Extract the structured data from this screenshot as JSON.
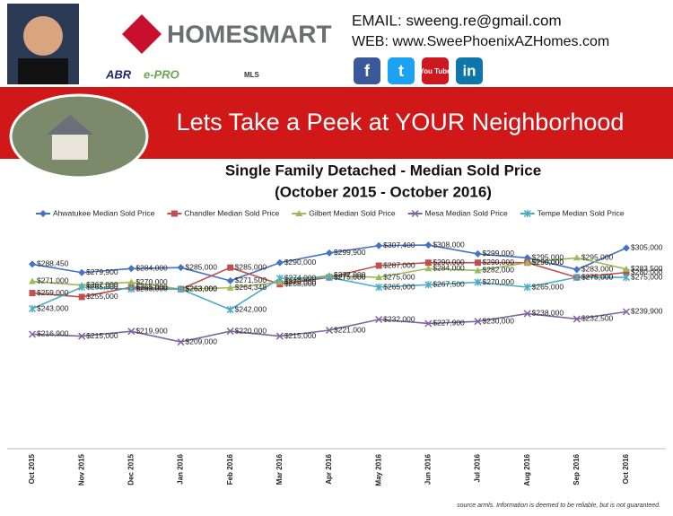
{
  "header": {
    "logo": "HOMESMART",
    "email": "EMAIL: sweeng.re@gmail.com",
    "web": "WEB: www.SweePhoenixAZHomes.com",
    "badges": [
      "ABR",
      "e-PRO",
      "MLS"
    ],
    "social": [
      "f",
      "t",
      "You Tube",
      "in"
    ],
    "banner": "Lets Take a Peek at YOUR Neighborhood"
  },
  "chart_data": {
    "type": "line",
    "title": "Single Family Detached - Median Sold Price",
    "subtitle": "(October 2015 - October 2016)",
    "categories": [
      "Oct 2015",
      "Nov 2015",
      "Dec 2015",
      "Jan 2016",
      "Feb 2016",
      "Mar 2016",
      "Apr 2016",
      "May 2016",
      "Jun 2016",
      "Jul 2016",
      "Aug 2016",
      "Sep 2016",
      "Oct 2016"
    ],
    "ylim": [
      100000,
      320000
    ],
    "series": [
      {
        "name": "Ahwatukee Median Sold Price",
        "color": "#4472c4",
        "marker": "diamond",
        "values": [
          288450,
          279900,
          284000,
          285000,
          271500,
          290000,
          299900,
          307400,
          308000,
          299000,
          295000,
          283000,
          305000
        ],
        "value_labels": [
          "$288,450",
          "$279,900",
          "$284,000",
          "$285,000",
          "$271,500",
          "$290,000",
          "$299,900",
          "$307,400",
          "$308,000",
          "$299,000",
          "$295,000",
          "$283,000",
          "$305,000"
        ]
      },
      {
        "name": "Chandler Median Sold Price",
        "color": "#c0504d",
        "marker": "square",
        "values": [
          259000,
          255000,
          265000,
          263000,
          285000,
          268000,
          275000,
          287000,
          290000,
          290000,
          290000,
          275000,
          280000
        ],
        "value_labels": [
          "$259,000",
          "$255,000",
          "$265,000",
          "$263,000",
          "$285,000",
          "$268,000",
          "$275,000",
          "$287,000",
          "$290,000",
          "$290,000",
          "$290,000",
          "$275,000",
          "$280,000"
        ]
      },
      {
        "name": "Gilbert Median Sold Price",
        "color": "#9bbb59",
        "marker": "triangle",
        "values": [
          271000,
          267000,
          270000,
          263000,
          264348,
          270000,
          277000,
          275000,
          284000,
          282000,
          290000,
          295000,
          283500
        ],
        "value_labels": [
          "$271,000",
          "$267,000",
          "$270,000",
          "$263,000",
          "$264,348",
          "$270,000",
          "$277,000",
          "$275,000",
          "$284,000",
          "$282,000",
          "$290,000",
          "$295,000",
          "$283,500"
        ]
      },
      {
        "name": "Mesa Median Sold Price",
        "color": "#8064a2",
        "marker": "x",
        "values": [
          216900,
          215000,
          219900,
          209000,
          220000,
          215000,
          221000,
          232000,
          227900,
          230000,
          238000,
          232500,
          239900
        ],
        "value_labels": [
          "$216,900",
          "$215,000",
          "$219,900",
          "$209,000",
          "$220,000",
          "$215,000",
          "$221,000",
          "$232,000",
          "$227,900",
          "$230,000",
          "$238,000",
          "$232,500",
          "$239,900"
        ]
      },
      {
        "name": "Tempe Median Sold Price",
        "color": "#4bacc6",
        "marker": "star",
        "values": [
          243000,
          265000,
          263000,
          263000,
          242000,
          274000,
          275000,
          265000,
          267500,
          270000,
          265000,
          275000,
          275000
        ],
        "value_labels": [
          "$243,000",
          "$265,000",
          "$263,000",
          "$263,000",
          "$242,000",
          "$274,000",
          "$275,000",
          "$265,000",
          "$267,500",
          "$270,000",
          "$265,000",
          "$275,000",
          "$275,000"
        ]
      }
    ],
    "source": "source armls. Information is deemed to be reliable, but is not guaranteed."
  }
}
